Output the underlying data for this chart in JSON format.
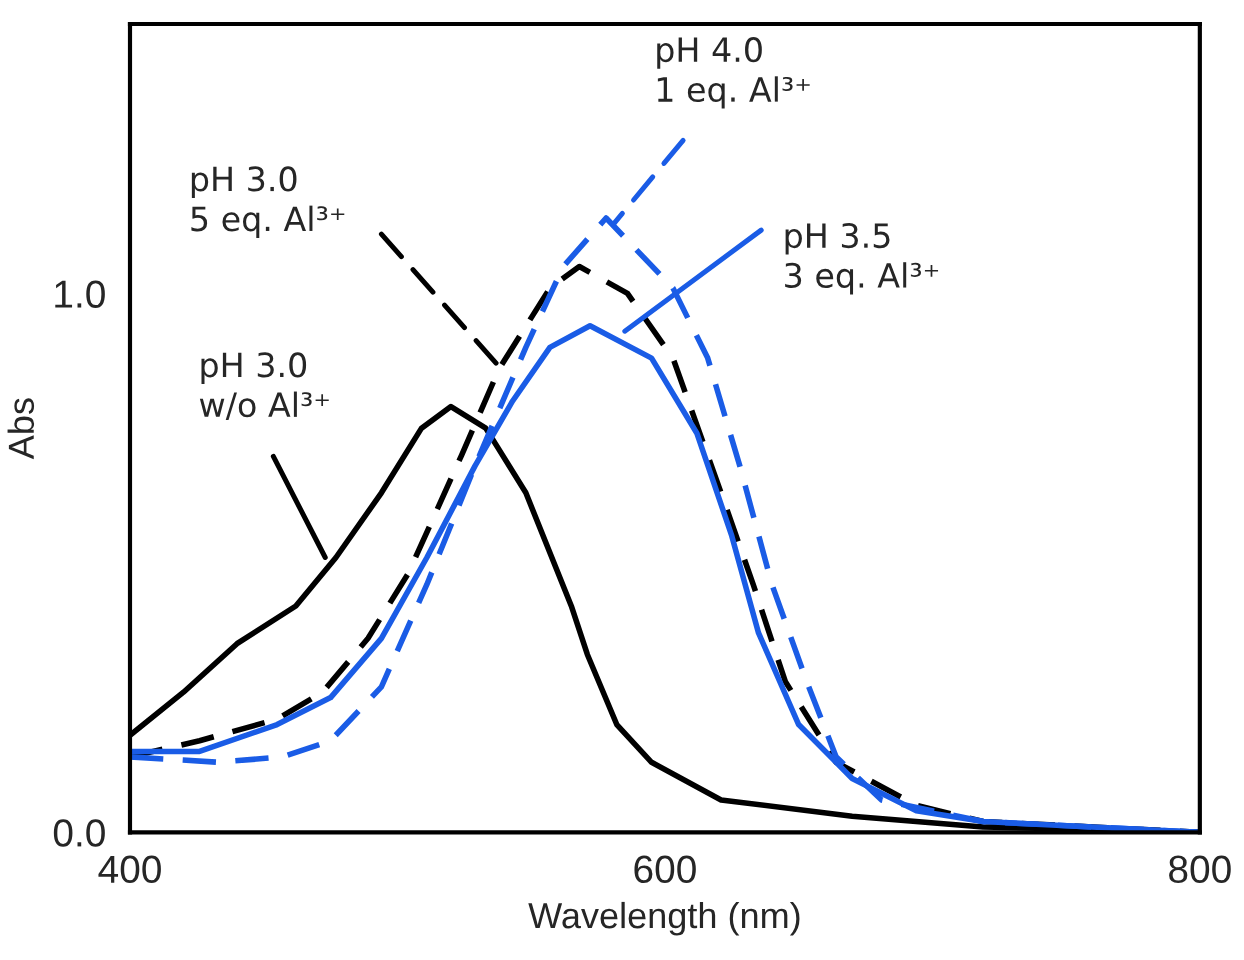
{
  "chart_data": {
    "type": "line",
    "xlabel": "Wavelength (nm)",
    "ylabel": "Abs",
    "xlim": [
      400,
      800
    ],
    "ylim": [
      0,
      1.5
    ],
    "xticks": [
      400,
      600,
      800
    ],
    "yticks": [
      {
        "value": 0,
        "label": "0.0"
      },
      {
        "value": 1,
        "label": "1.0"
      }
    ],
    "grid": false,
    "legend": false,
    "series": [
      {
        "color": "#000000",
        "line_style": "solid",
        "x": [
          400,
          420,
          440,
          462,
          477,
          494,
          509,
          520,
          533,
          548,
          565,
          571,
          582,
          595,
          621,
          670,
          719,
          800
        ],
        "values": [
          0.18,
          0.26,
          0.35,
          0.42,
          0.51,
          0.63,
          0.75,
          0.79,
          0.75,
          0.63,
          0.42,
          0.33,
          0.2,
          0.13,
          0.06,
          0.03,
          0.01,
          0.0
        ]
      },
      {
        "color": "#000000",
        "line_style": "dashed",
        "x": [
          400,
          426,
          455,
          472,
          489,
          504,
          524,
          538,
          557,
          568,
          586,
          603,
          621,
          633,
          645,
          664,
          694,
          719,
          800
        ],
        "values": [
          0.14,
          0.17,
          0.21,
          0.26,
          0.36,
          0.48,
          0.7,
          0.86,
          1.01,
          1.05,
          1.0,
          0.88,
          0.63,
          0.46,
          0.28,
          0.13,
          0.05,
          0.02,
          0.0
        ]
      },
      {
        "color": "#1a5ce6",
        "line_style": "dashed",
        "x": [
          400,
          433,
          457,
          475,
          494,
          511,
          529,
          548,
          562,
          578,
          603,
          616,
          628,
          640,
          653,
          664,
          681,
          719,
          800
        ],
        "values": [
          0.14,
          0.13,
          0.14,
          0.17,
          0.27,
          0.46,
          0.68,
          0.9,
          1.05,
          1.14,
          1.01,
          0.88,
          0.68,
          0.46,
          0.28,
          0.14,
          0.06,
          0.02,
          0.0
        ]
      },
      {
        "color": "#1a5ce6",
        "line_style": "solid",
        "x": [
          400,
          426,
          455,
          475,
          494,
          511,
          529,
          543,
          557,
          572,
          595,
          612,
          625,
          635,
          650,
          670,
          694,
          719,
          800
        ],
        "values": [
          0.15,
          0.15,
          0.2,
          0.25,
          0.36,
          0.51,
          0.68,
          0.8,
          0.9,
          0.94,
          0.88,
          0.74,
          0.55,
          0.37,
          0.2,
          0.1,
          0.04,
          0.02,
          0.0
        ]
      }
    ],
    "annotations": [
      {
        "text": "pH 3.0\nw/o Al³⁺",
        "x": 473,
        "y": 0.51
      },
      {
        "text": "pH 3.0\n5 eq. Al³⁺",
        "x": 537,
        "y": 0.87
      },
      {
        "text": "pH 4.0\n1 eq. Al³⁺",
        "x": 581,
        "y": 1.13
      },
      {
        "text": "pH 3.5\n3 eq. Al³⁺",
        "x": 585,
        "y": 0.93
      }
    ]
  }
}
